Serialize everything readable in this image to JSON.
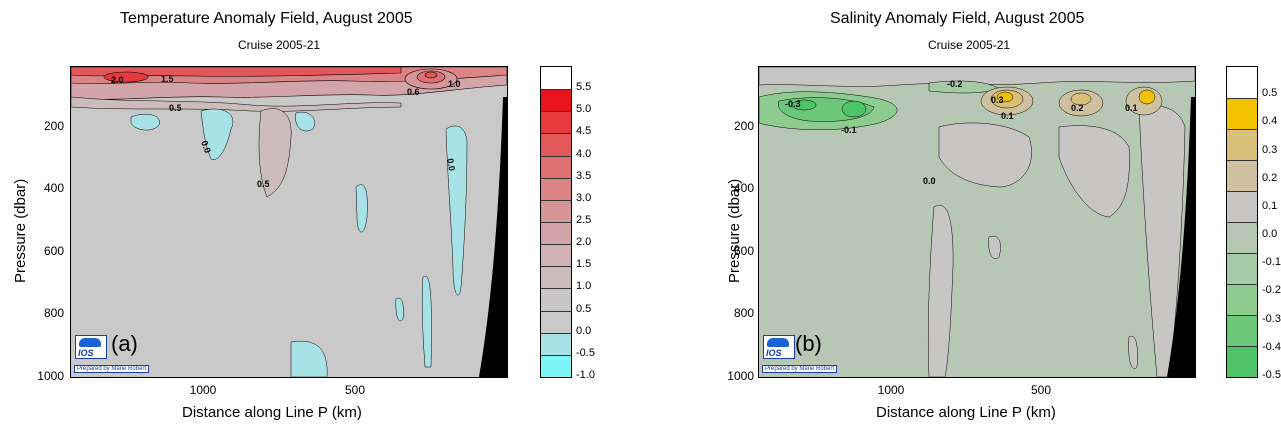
{
  "chart_data": [
    {
      "type": "heatmap",
      "title": "Temperature Anomaly Field,  August 2005",
      "subtitle": "Cruise 2005-21",
      "xlabel": "Distance along Line P  (km)",
      "ylabel": "Pressure  (dbar)",
      "x_ticks": [
        "1000",
        "500"
      ],
      "y_ticks": [
        "200",
        "400",
        "600",
        "800",
        "1000"
      ],
      "ylim": [
        1000,
        0
      ],
      "panel_label": "(a)",
      "logo_text": "IOS",
      "credit": "Prepared by Marie Robert",
      "colorbar": {
        "labels": [
          "5.5",
          "5.0",
          "4.5",
          "4.0",
          "3.5",
          "3.0",
          "2.5",
          "2.0",
          "1.5",
          "1.0",
          "0.5",
          "0.0",
          "-0.5",
          "-1.0"
        ],
        "colors": [
          "#ffffff",
          "#e8141c",
          "#e63a3e",
          "#e2585a",
          "#de7072",
          "#da8486",
          "#d69698",
          "#d2a6a8",
          "#d0b2b4",
          "#ccbcbd",
          "#c8c6c7",
          "#c9c9c9",
          "#a8e2e6",
          "#7ff4f6"
        ]
      },
      "contour_labels": [
        "2.0",
        "1.5",
        "0.5",
        "0.0",
        "0.5",
        "0.6",
        "1.0",
        "0.0"
      ],
      "background_color": "#c9c9c9"
    },
    {
      "type": "heatmap",
      "title": "Salinity Anomaly Field,  August 2005",
      "subtitle": "Cruise 2005-21",
      "xlabel": "Distance along Line P  (km)",
      "ylabel": "Pressure  (dbar)",
      "x_ticks": [
        "1000",
        "500"
      ],
      "y_ticks": [
        "200",
        "400",
        "600",
        "800",
        "1000"
      ],
      "ylim": [
        1000,
        0
      ],
      "panel_label": "(b)",
      "logo_text": "IOS",
      "credit": "Prepared by Marie Robert",
      "colorbar": {
        "labels": [
          "0.5",
          "0.4",
          "0.3",
          "0.2",
          "0.1",
          "0.0",
          "-0.1",
          "-0.2",
          "-0.3",
          "-0.4",
          "-0.5"
        ],
        "colors": [
          "#ffffff",
          "#f2c200",
          "#d9c07a",
          "#cfc0a0",
          "#c8c6c4",
          "#b6c8b3",
          "#a6caa6",
          "#8ecb8f",
          "#6cc77a",
          "#4fc368"
        ]
      },
      "contour_labels": [
        "-0.2",
        "-0.3",
        "-0.1",
        "0.3",
        "0.1",
        "0.2",
        "0.1",
        "0.0"
      ],
      "background_color": "#b6c8b3"
    }
  ]
}
